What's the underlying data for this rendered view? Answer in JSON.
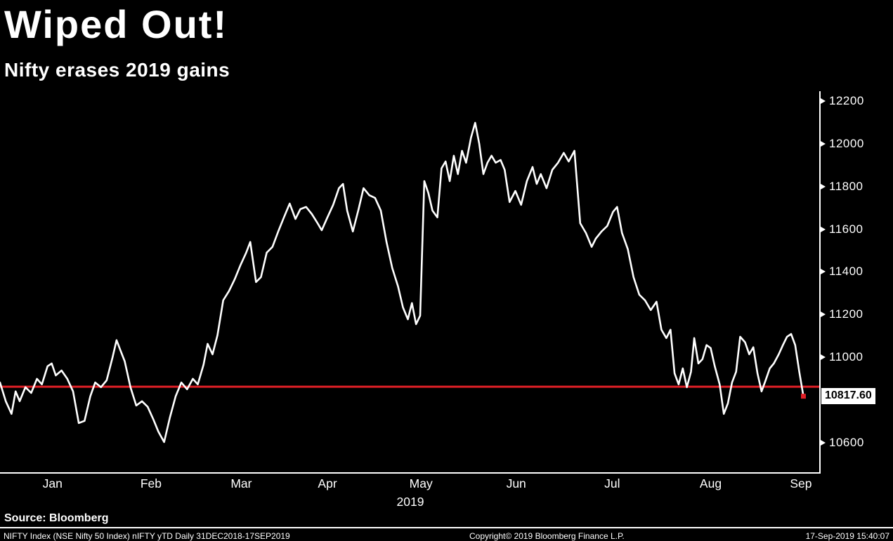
{
  "header": {
    "title": "Wiped Out!",
    "subtitle": "Nifty erases 2019 gains"
  },
  "footer": {
    "source": "Source: Bloomberg",
    "left": "NIFTY Index (NSE Nifty 50 Index) nIFTY yTD  Daily 31DEC2018-17SEP2019",
    "center": "Copyright© 2019 Bloomberg Finance L.P.",
    "right": "17-Sep-2019 15:40:07"
  },
  "chart_data": {
    "type": "line",
    "title": "Wiped Out!",
    "subtitle": "Nifty erases 2019 gains",
    "background": "#000000",
    "grid": false,
    "line_color": "#ffffff",
    "reference_line": {
      "value": 10862,
      "color": "#e01f26"
    },
    "last_price": {
      "label": "10817.60",
      "value": 10817.6,
      "box_bg": "#ffffff",
      "box_text": "#000000",
      "marker_color": "#e01f26"
    },
    "x_axis": {
      "labels": [
        "Jan",
        "Feb",
        "Mar",
        "Apr",
        "May",
        "Jun",
        "Jul",
        "Aug",
        "Sep"
      ],
      "positions": [
        0.064,
        0.184,
        0.294,
        0.399,
        0.513,
        0.629,
        0.746,
        0.866,
        0.976
      ],
      "year_label": "2019",
      "side": "bottom"
    },
    "y_axis": {
      "ticks": [
        12200,
        12000,
        11800,
        11600,
        11400,
        11200,
        11000,
        10600
      ],
      "range": [
        10455,
        12246
      ],
      "side": "right"
    },
    "series": [
      {
        "name": "NIFTY Index",
        "points": [
          [
            0.0,
            10882
          ],
          [
            0.007,
            10794
          ],
          [
            0.014,
            10735
          ],
          [
            0.019,
            10840
          ],
          [
            0.024,
            10794
          ],
          [
            0.031,
            10860
          ],
          [
            0.038,
            10833
          ],
          [
            0.045,
            10899
          ],
          [
            0.051,
            10873
          ],
          [
            0.058,
            10958
          ],
          [
            0.063,
            10971
          ],
          [
            0.068,
            10915
          ],
          [
            0.075,
            10938
          ],
          [
            0.082,
            10899
          ],
          [
            0.089,
            10840
          ],
          [
            0.096,
            10692
          ],
          [
            0.103,
            10702
          ],
          [
            0.11,
            10817
          ],
          [
            0.116,
            10882
          ],
          [
            0.123,
            10860
          ],
          [
            0.13,
            10892
          ],
          [
            0.137,
            10997
          ],
          [
            0.142,
            11080
          ],
          [
            0.147,
            11030
          ],
          [
            0.152,
            10981
          ],
          [
            0.159,
            10860
          ],
          [
            0.166,
            10774
          ],
          [
            0.173,
            10794
          ],
          [
            0.18,
            10768
          ],
          [
            0.187,
            10708
          ],
          [
            0.193,
            10652
          ],
          [
            0.2,
            10603
          ],
          [
            0.207,
            10718
          ],
          [
            0.214,
            10817
          ],
          [
            0.221,
            10882
          ],
          [
            0.228,
            10850
          ],
          [
            0.235,
            10899
          ],
          [
            0.241,
            10873
          ],
          [
            0.248,
            10965
          ],
          [
            0.253,
            11063
          ],
          [
            0.259,
            11014
          ],
          [
            0.265,
            11103
          ],
          [
            0.272,
            11267
          ],
          [
            0.279,
            11310
          ],
          [
            0.286,
            11365
          ],
          [
            0.293,
            11431
          ],
          [
            0.3,
            11490
          ],
          [
            0.305,
            11540
          ],
          [
            0.312,
            11352
          ],
          [
            0.318,
            11375
          ],
          [
            0.325,
            11490
          ],
          [
            0.332,
            11517
          ],
          [
            0.339,
            11589
          ],
          [
            0.346,
            11655
          ],
          [
            0.353,
            11720
          ],
          [
            0.36,
            11648
          ],
          [
            0.366,
            11694
          ],
          [
            0.373,
            11704
          ],
          [
            0.38,
            11671
          ],
          [
            0.387,
            11628
          ],
          [
            0.392,
            11595
          ],
          [
            0.399,
            11655
          ],
          [
            0.406,
            11714
          ],
          [
            0.413,
            11792
          ],
          [
            0.418,
            11812
          ],
          [
            0.423,
            11687
          ],
          [
            0.43,
            11589
          ],
          [
            0.437,
            11694
          ],
          [
            0.443,
            11792
          ],
          [
            0.45,
            11759
          ],
          [
            0.457,
            11746
          ],
          [
            0.464,
            11687
          ],
          [
            0.471,
            11540
          ],
          [
            0.478,
            11418
          ],
          [
            0.485,
            11332
          ],
          [
            0.491,
            11234
          ],
          [
            0.497,
            11178
          ],
          [
            0.502,
            11254
          ],
          [
            0.507,
            11155
          ],
          [
            0.512,
            11195
          ],
          [
            0.517,
            11825
          ],
          [
            0.522,
            11769
          ],
          [
            0.527,
            11687
          ],
          [
            0.533,
            11655
          ],
          [
            0.538,
            11885
          ],
          [
            0.543,
            11917
          ],
          [
            0.548,
            11825
          ],
          [
            0.553,
            11944
          ],
          [
            0.558,
            11858
          ],
          [
            0.563,
            11967
          ],
          [
            0.568,
            11911
          ],
          [
            0.574,
            12029
          ],
          [
            0.579,
            12098
          ],
          [
            0.584,
            12000
          ],
          [
            0.589,
            11858
          ],
          [
            0.594,
            11911
          ],
          [
            0.599,
            11944
          ],
          [
            0.604,
            11911
          ],
          [
            0.61,
            11924
          ],
          [
            0.615,
            11878
          ],
          [
            0.621,
            11727
          ],
          [
            0.628,
            11779
          ],
          [
            0.635,
            11714
          ],
          [
            0.642,
            11825
          ],
          [
            0.649,
            11891
          ],
          [
            0.654,
            11812
          ],
          [
            0.659,
            11858
          ],
          [
            0.666,
            11792
          ],
          [
            0.673,
            11878
          ],
          [
            0.68,
            11911
          ],
          [
            0.687,
            11957
          ],
          [
            0.693,
            11917
          ],
          [
            0.7,
            11967
          ],
          [
            0.707,
            11628
          ],
          [
            0.714,
            11582
          ],
          [
            0.721,
            11517
          ],
          [
            0.726,
            11556
          ],
          [
            0.733,
            11589
          ],
          [
            0.74,
            11615
          ],
          [
            0.747,
            11681
          ],
          [
            0.752,
            11704
          ],
          [
            0.758,
            11582
          ],
          [
            0.765,
            11507
          ],
          [
            0.772,
            11375
          ],
          [
            0.779,
            11293
          ],
          [
            0.786,
            11267
          ],
          [
            0.793,
            11221
          ],
          [
            0.8,
            11260
          ],
          [
            0.806,
            11129
          ],
          [
            0.812,
            11090
          ],
          [
            0.817,
            11129
          ],
          [
            0.822,
            10925
          ],
          [
            0.827,
            10873
          ],
          [
            0.832,
            10948
          ],
          [
            0.837,
            10860
          ],
          [
            0.842,
            10932
          ],
          [
            0.846,
            11090
          ],
          [
            0.851,
            10971
          ],
          [
            0.856,
            10991
          ],
          [
            0.861,
            11057
          ],
          [
            0.866,
            11043
          ],
          [
            0.871,
            10958
          ],
          [
            0.877,
            10873
          ],
          [
            0.882,
            10735
          ],
          [
            0.887,
            10784
          ],
          [
            0.892,
            10882
          ],
          [
            0.897,
            10932
          ],
          [
            0.902,
            11096
          ],
          [
            0.908,
            11070
          ],
          [
            0.913,
            11014
          ],
          [
            0.918,
            11047
          ],
          [
            0.923,
            10925
          ],
          [
            0.928,
            10840
          ],
          [
            0.933,
            10892
          ],
          [
            0.938,
            10948
          ],
          [
            0.943,
            10971
          ],
          [
            0.949,
            11014
          ],
          [
            0.954,
            11057
          ],
          [
            0.959,
            11096
          ],
          [
            0.964,
            11109
          ],
          [
            0.969,
            11057
          ],
          [
            0.974,
            10932
          ],
          [
            0.979,
            10817.6
          ]
        ]
      }
    ]
  }
}
